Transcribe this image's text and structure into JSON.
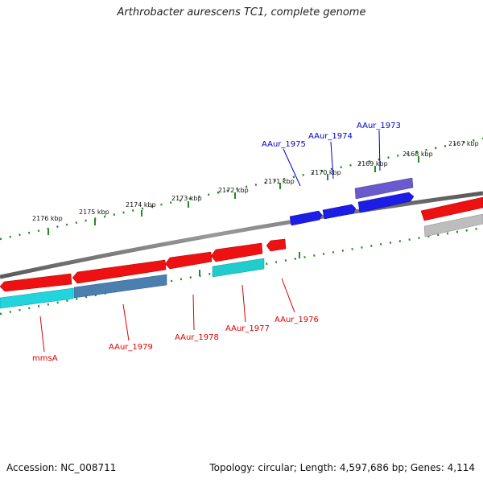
{
  "title": "Arthrobacter aurescens TC1, complete genome",
  "footer": {
    "accession": "Accession: NC_008711",
    "summary": "Topology: circular; Length: 4,597,686 bp; Genes: 4,114"
  },
  "colors": {
    "forward_gene": "#2020e0",
    "forward_alt": "#6a5acd",
    "reverse_gene": "#ee1111",
    "reverse_alt_cyan": "#22cccc",
    "reverse_alt_steel": "#4a7fb0",
    "grey_feature": "#b8b8b8",
    "tick_green": "#228b22",
    "backbone": "#7a7a7a",
    "forward_label": "#0000cc",
    "reverse_label": "#dd0000"
  },
  "scale_labels": [
    "2176 kbp",
    "2175 kbp",
    "2174 kbp",
    "2173 kbp",
    "2172 kbp",
    "2171 kbp",
    "2170 kbp",
    "2169 kbp",
    "2168 kbp",
    "2167 kbp"
  ],
  "forward_genes": [
    {
      "name": "AAur_1975"
    },
    {
      "name": "AAur_1974"
    },
    {
      "name": "AAur_1973"
    }
  ],
  "reverse_genes": [
    {
      "name": "mmsA"
    },
    {
      "name": "AAur_1979"
    },
    {
      "name": "AAur_1978"
    },
    {
      "name": "AAur_1977"
    },
    {
      "name": "AAur_1976"
    }
  ]
}
